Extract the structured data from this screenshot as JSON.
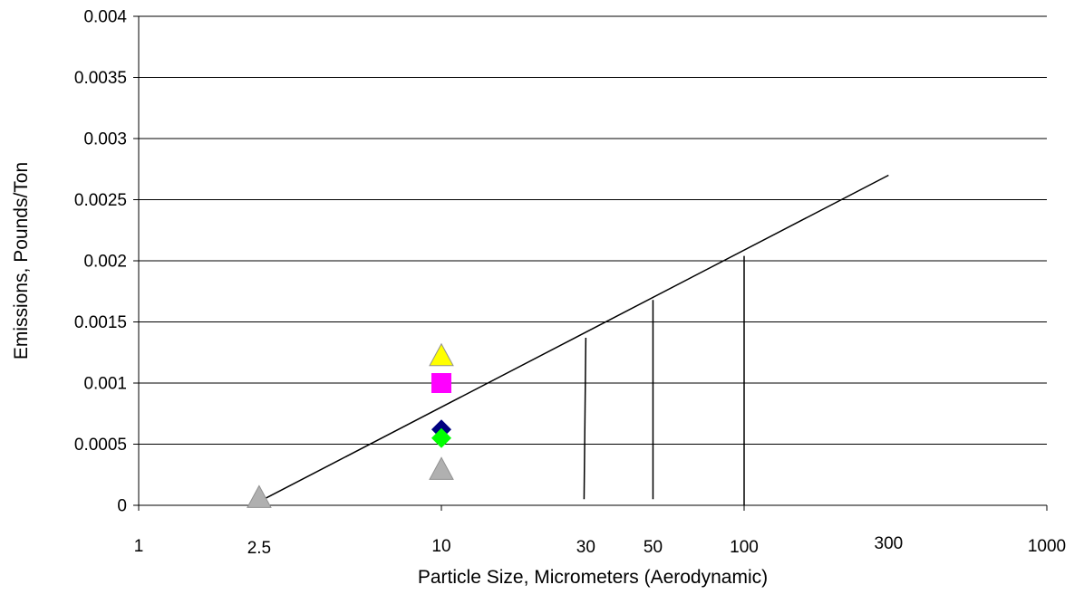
{
  "chart_data": {
    "type": "scatter",
    "title": "",
    "xlabel": "Particle Size, Micrometers (Aerodynamic)",
    "ylabel": "Emissions, Pounds/Ton",
    "x_scale": "log",
    "xlim": [
      1,
      1000
    ],
    "ylim": [
      0,
      0.004
    ],
    "grid": {
      "horizontal": true,
      "vertical": false
    },
    "legend": "none",
    "x_tick_values": [
      1,
      10,
      1000
    ],
    "x_tick_labels": [
      "1",
      "10",
      "1000"
    ],
    "x_annotation_labels": [
      {
        "x": 2.5,
        "label": "2.5"
      },
      {
        "x": 30,
        "label": "30"
      },
      {
        "x": 50,
        "label": "50"
      },
      {
        "x": 100,
        "label": "100"
      },
      {
        "x": 300,
        "label": "300"
      }
    ],
    "y_tick_values": [
      0,
      0.0005,
      0.001,
      0.0015,
      0.002,
      0.0025,
      0.003,
      0.0035,
      0.004
    ],
    "y_tick_labels": [
      "0",
      "0.0005",
      "0.001",
      "0.0015",
      "0.002",
      "0.0025",
      "0.003",
      "0.0035",
      "0.004"
    ],
    "fit_line": {
      "color": "#000000",
      "points": [
        [
          2.5,
          3e-05
        ],
        [
          300,
          0.0027
        ]
      ]
    },
    "drop_lines": [
      {
        "x_top": 30,
        "x_bottom": 29.6,
        "y_top": 0.00137,
        "y_bottom": 5e-05
      },
      {
        "x_top": 50,
        "x_bottom": 50,
        "y_top": 0.00168,
        "y_bottom": 5e-05
      },
      {
        "x_top": 100,
        "x_bottom": 100,
        "y_top": 0.00204,
        "y_bottom": 0.0
      }
    ],
    "series": [
      {
        "marker": "triangle",
        "color": "#ffff00",
        "x": 10,
        "y": 0.00121
      },
      {
        "marker": "square",
        "color": "#ff00ff",
        "x": 10,
        "y": 0.001
      },
      {
        "marker": "diamond",
        "color": "#000080",
        "x": 10,
        "y": 0.00062
      },
      {
        "marker": "diamond",
        "color": "#00ff00",
        "x": 10,
        "y": 0.00055
      },
      {
        "marker": "triangle",
        "color": "#b0b0b0",
        "x": 10,
        "y": 0.00028
      },
      {
        "marker": "triangle",
        "color": "#b0b0b0",
        "x": 2.5,
        "y": 5e-05
      }
    ]
  }
}
